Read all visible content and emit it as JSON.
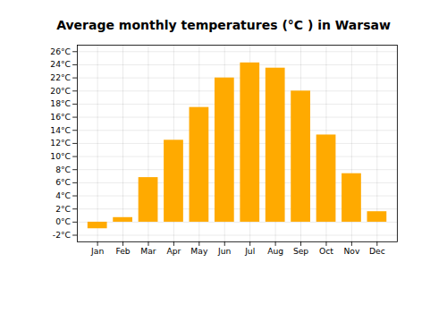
{
  "chart_data": {
    "type": "bar",
    "title": "Average monthly temperatures (°C ) in Warsaw",
    "categories": [
      "Jan",
      "Feb",
      "Mar",
      "Apr",
      "May",
      "Jun",
      "Jul",
      "Aug",
      "Sep",
      "Oct",
      "Nov",
      "Dec"
    ],
    "values": [
      -1.0,
      0.7,
      6.8,
      12.5,
      17.5,
      22.0,
      24.3,
      23.5,
      20.0,
      13.3,
      7.4,
      1.6
    ],
    "color": "#FFAA00",
    "ylim": [
      -3,
      27
    ],
    "yticks": [
      {
        "value": -2,
        "label": "-2°C"
      },
      {
        "value": 0,
        "label": "0°C"
      },
      {
        "value": 2,
        "label": "2°C"
      },
      {
        "value": 4,
        "label": "4°C"
      },
      {
        "value": 6,
        "label": "6°C"
      },
      {
        "value": 8,
        "label": "8°C"
      },
      {
        "value": 10,
        "label": "10°C"
      },
      {
        "value": 12,
        "label": "12°C"
      },
      {
        "value": 14,
        "label": "14°C"
      },
      {
        "value": 16,
        "label": "16°C"
      },
      {
        "value": 18,
        "label": "18°C"
      },
      {
        "value": 20,
        "label": "20°C"
      },
      {
        "value": 22,
        "label": "22°C"
      },
      {
        "value": 24,
        "label": "24°C"
      },
      {
        "value": 26,
        "label": "26°C"
      }
    ],
    "grid": true
  }
}
